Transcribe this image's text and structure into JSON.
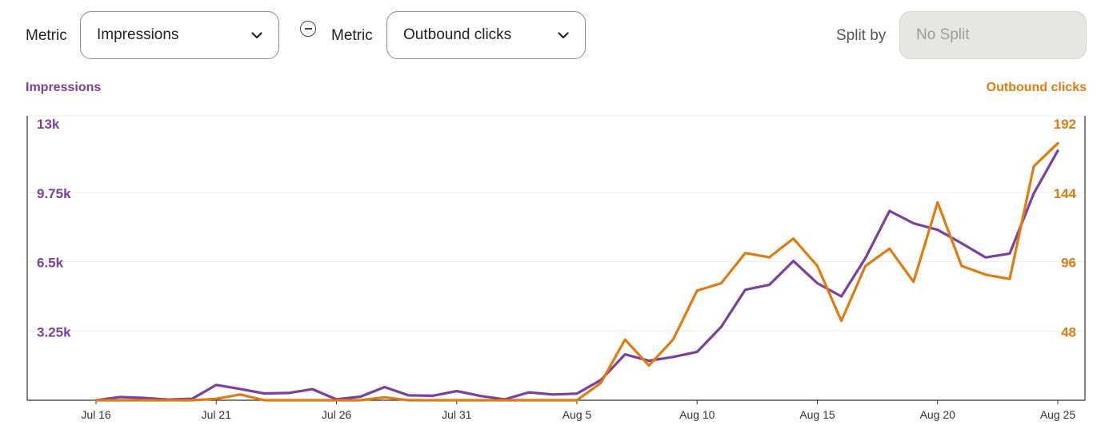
{
  "controls": {
    "metric1_label": "Metric",
    "metric1_value": "Impressions",
    "metric2_label": "Metric",
    "metric2_value": "Outbound clicks",
    "split_label": "Split by",
    "split_value": "No Split",
    "remove_icon": "circle-minus-icon",
    "dropdown_icon": "chevron-down-icon"
  },
  "colors": {
    "impressions": "#7b3fa0",
    "clicks": "#e07b10",
    "grid": "#eeeeee",
    "axis": "#333333"
  },
  "chart_data": {
    "type": "line",
    "left_axis_title": "Impressions",
    "right_axis_title": "Outbound clicks",
    "left_ylim": [
      0,
      13000
    ],
    "right_ylim": [
      0,
      192
    ],
    "left_ticks": [
      "3.25k",
      "6.5k",
      "9.75k",
      "13k"
    ],
    "right_ticks": [
      "48",
      "96",
      "144",
      "192"
    ],
    "x_tick_labels": [
      "Jul 16",
      "Jul 21",
      "Jul 26",
      "Jul 31",
      "Aug 5",
      "Aug 10",
      "Aug 15",
      "Aug 20",
      "Aug 25"
    ],
    "x": [
      "Jul 16",
      "Jul 17",
      "Jul 18",
      "Jul 19",
      "Jul 20",
      "Jul 21",
      "Jul 22",
      "Jul 23",
      "Jul 24",
      "Jul 25",
      "Jul 26",
      "Jul 27",
      "Jul 28",
      "Jul 29",
      "Jul 30",
      "Jul 31",
      "Aug 1",
      "Aug 2",
      "Aug 3",
      "Aug 4",
      "Aug 5",
      "Aug 6",
      "Aug 7",
      "Aug 8",
      "Aug 9",
      "Aug 10",
      "Aug 11",
      "Aug 12",
      "Aug 13",
      "Aug 14",
      "Aug 15",
      "Aug 16",
      "Aug 17",
      "Aug 18",
      "Aug 19",
      "Aug 20",
      "Aug 21",
      "Aug 22",
      "Aug 23",
      "Aug 24",
      "Aug 25"
    ],
    "grid": true,
    "series": [
      {
        "name": "Impressions",
        "axis": "left",
        "values": [
          0,
          150,
          110,
          30,
          70,
          720,
          530,
          320,
          340,
          520,
          40,
          170,
          620,
          230,
          210,
          430,
          200,
          40,
          370,
          270,
          310,
          950,
          2150,
          1850,
          2030,
          2270,
          3440,
          5180,
          5410,
          6530,
          5490,
          4870,
          6670,
          8880,
          8300,
          7990,
          7360,
          6700,
          6880,
          9700,
          11700
        ]
      },
      {
        "name": "Outbound clicks",
        "axis": "right",
        "values": [
          0,
          0,
          0,
          0,
          0,
          1,
          4,
          0,
          0,
          0,
          0,
          0,
          2,
          0,
          0,
          0,
          0,
          0,
          0,
          0,
          0,
          12,
          42,
          24,
          42,
          76,
          81,
          102,
          99,
          112,
          93,
          55,
          93,
          105,
          82,
          137,
          93,
          87,
          84,
          162,
          178
        ]
      }
    ]
  }
}
